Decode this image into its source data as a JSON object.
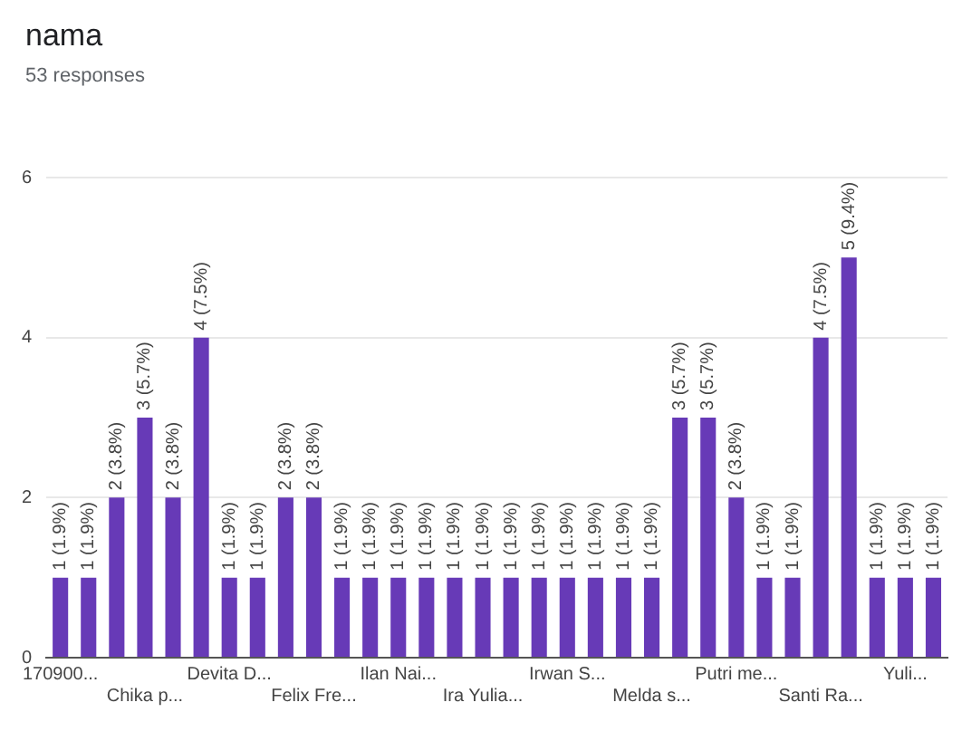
{
  "chart_data": {
    "type": "bar",
    "title": "nama",
    "subtitle": "53 responses",
    "categories": [
      "170900...",
      null,
      null,
      "Chika p...",
      null,
      null,
      "Devita D...",
      null,
      null,
      "Felix Fre...",
      null,
      null,
      "Ilan Nai...",
      null,
      null,
      "Ira Yulia...",
      null,
      null,
      "Irwan S...",
      null,
      null,
      "Melda s...",
      null,
      null,
      "Putri me...",
      null,
      null,
      "Santi Ra...",
      null,
      null,
      "Yuli...",
      null
    ],
    "values": [
      1,
      1,
      2,
      3,
      2,
      4,
      1,
      1,
      2,
      2,
      1,
      1,
      1,
      1,
      1,
      1,
      1,
      1,
      1,
      1,
      1,
      1,
      3,
      3,
      2,
      1,
      1,
      4,
      5,
      1,
      1,
      1
    ],
    "value_labels": [
      "1 (1.9%)",
      "1 (1.9%)",
      "2 (3.8%)",
      "3 (5.7%)",
      "2 (3.8%)",
      "4 (7.5%)",
      "1 (1.9%)",
      "1 (1.9%)",
      "2 (3.8%)",
      "2 (3.8%)",
      "1 (1.9%)",
      "1 (1.9%)",
      "1 (1.9%)",
      "1 (1.9%)",
      "1 (1.9%)",
      "1 (1.9%)",
      "1 (1.9%)",
      "1 (1.9%)",
      "1 (1.9%)",
      "1 (1.9%)",
      "1 (1.9%)",
      "1 (1.9%)",
      "3 (5.7%)",
      "3 (5.7%)",
      "2 (3.8%)",
      "1 (1.9%)",
      "1 (1.9%)",
      "4 (7.5%)",
      "5 (9.4%)",
      "1 (1.9%)",
      "1 (1.9%)",
      "1 (1.9%)"
    ],
    "color": "#673ab7",
    "ylim": [
      0,
      6
    ],
    "yticks": [
      0,
      2,
      4,
      6
    ],
    "grid": "y",
    "legend": false
  }
}
